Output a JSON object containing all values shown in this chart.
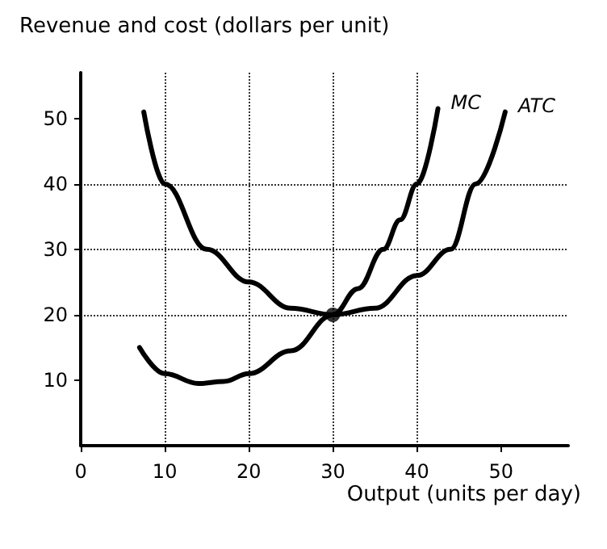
{
  "chart_data": {
    "type": "line",
    "ylabel": "Revenue and cost (dollars per unit)",
    "xlabel": "Output (units per day)",
    "xlim": [
      0,
      58
    ],
    "ylim": [
      0,
      57
    ],
    "xticks": [
      0,
      10,
      20,
      30,
      40,
      50
    ],
    "yticks": [
      10,
      20,
      30,
      40,
      50
    ],
    "grid": true,
    "line_style": "solid",
    "series": [
      {
        "name": "MC",
        "color": "#000000",
        "x": [
          7,
          10,
          14,
          17,
          20,
          25,
          30,
          33,
          36,
          38,
          40,
          42.5
        ],
        "values": [
          15,
          11,
          9.5,
          9.8,
          11,
          14.5,
          20,
          24,
          30,
          34.5,
          40,
          51.5
        ]
      },
      {
        "name": "ATC",
        "color": "#000000",
        "x": [
          7.5,
          10,
          15,
          20,
          25,
          30,
          35,
          40,
          44,
          47,
          50.5
        ],
        "values": [
          51,
          40,
          30,
          25,
          21,
          20,
          21,
          26,
          30,
          40,
          51
        ]
      },
      {
        "type": "scatter",
        "color": "#000000",
        "marker": "circle",
        "x": [
          30
        ],
        "values": [
          20
        ]
      }
    ]
  }
}
